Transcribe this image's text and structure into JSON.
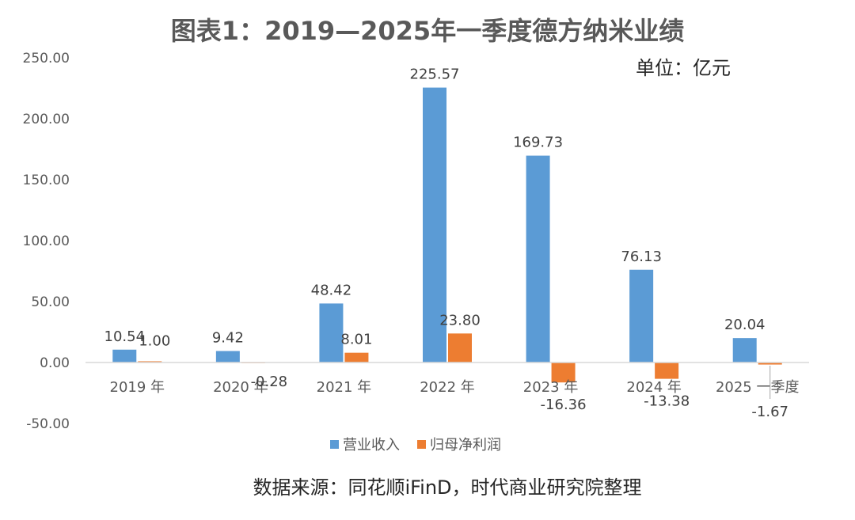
{
  "chart_data": {
    "type": "bar",
    "title": "图表1：2019—2025年一季度德方纳米业绩",
    "unit_label": "单位：亿元",
    "categories": [
      "2019 年",
      "2020 年",
      "2021 年",
      "2022 年",
      "2023 年",
      "2024 年",
      "2025 一季度"
    ],
    "series": [
      {
        "name": "营业收入",
        "color": "#5B9BD5",
        "values": [
          10.54,
          9.42,
          48.42,
          225.57,
          169.73,
          76.13,
          20.04
        ],
        "labels": [
          "10.54",
          "9.42",
          "48.42",
          "225.57",
          "169.73",
          "76.13",
          "20.04"
        ]
      },
      {
        "name": "归母净利润",
        "color": "#ED7D31",
        "values": [
          1.0,
          -0.28,
          8.01,
          23.8,
          -16.36,
          -13.38,
          -1.67
        ],
        "labels": [
          "1.00",
          "-0.28",
          "8.01",
          "23.80",
          "-16.36",
          "-13.38",
          "-1.67"
        ]
      }
    ],
    "y_ticks": [
      "250.00",
      "200.00",
      "150.00",
      "100.00",
      "50.00",
      "0.00",
      "-50.00"
    ],
    "y_tick_values": [
      250,
      200,
      150,
      100,
      50,
      0,
      -50
    ],
    "ylim": [
      -50,
      250
    ],
    "xlabel": "",
    "ylabel": "",
    "grid": false,
    "legend_position": "bottom"
  },
  "source": "数据来源：同花顺iFinD，时代商业研究院整理"
}
